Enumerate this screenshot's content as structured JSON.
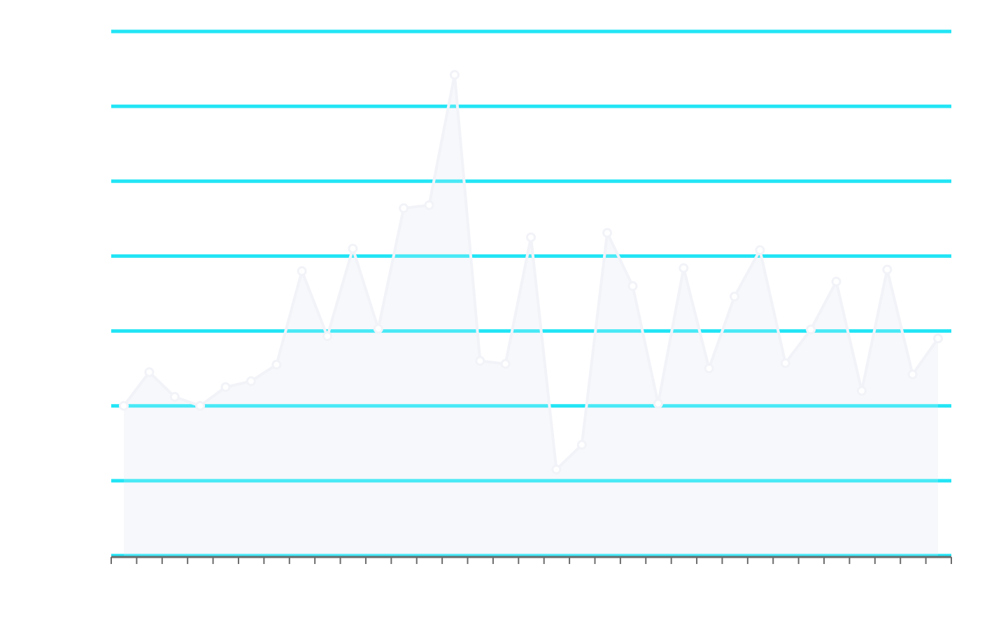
{
  "chart_data": {
    "type": "area",
    "title": "",
    "xlabel": "",
    "ylabel": "",
    "x_tick_labels": [],
    "y_tick_labels": [],
    "grid": true,
    "ylim": [
      0,
      7
    ],
    "categories_count": 33,
    "series": [
      {
        "values": [
          2.0,
          2.45,
          2.12,
          2.0,
          2.25,
          2.33,
          2.55,
          3.8,
          2.93,
          4.1,
          3.03,
          4.64,
          4.68,
          6.42,
          2.6,
          2.56,
          4.25,
          1.15,
          1.48,
          4.31,
          3.6,
          2.03,
          3.84,
          2.5,
          3.46,
          4.08,
          2.57,
          3.02,
          3.66,
          2.2,
          3.82,
          2.42,
          2.9
        ]
      }
    ],
    "colors": {
      "grid": "#22e5f5",
      "line": "#f2f3f8",
      "area_fill": "#f5f6fa",
      "axis": "#6b6b6b"
    }
  }
}
